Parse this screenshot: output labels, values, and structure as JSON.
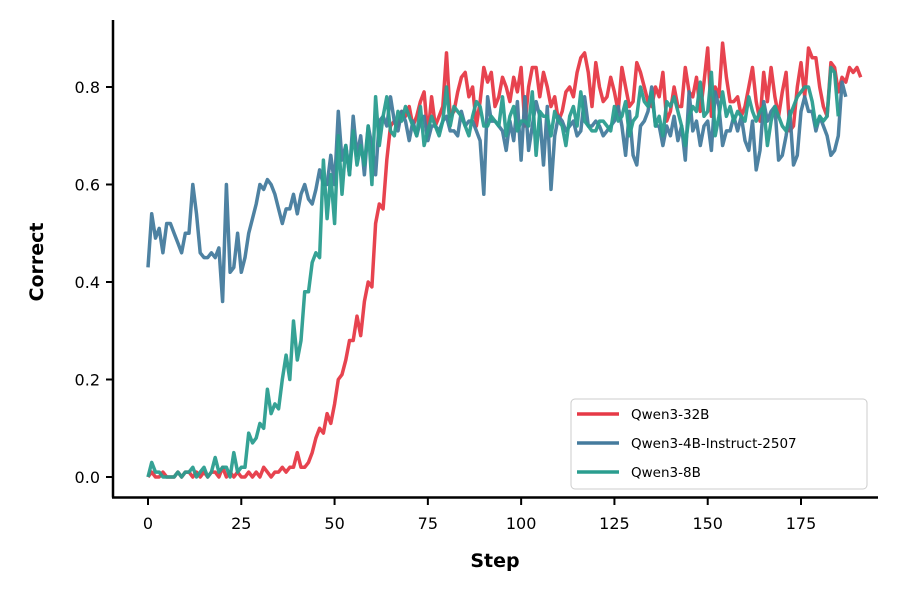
{
  "chart_data": {
    "type": "line",
    "title": "",
    "xlabel": "Step",
    "ylabel": "Correct",
    "xlim": [
      -9,
      197
    ],
    "ylim": [
      -0.045,
      0.935
    ],
    "xticks": [
      0,
      25,
      50,
      75,
      100,
      125,
      150,
      175
    ],
    "yticks": [
      0.0,
      0.2,
      0.4,
      0.6,
      0.8
    ],
    "ytick_labels": [
      "0.0",
      "0.2",
      "0.4",
      "0.6",
      "0.8"
    ],
    "grid": false,
    "legend_position": "lower right",
    "series": [
      {
        "name": "Qwen3-32B",
        "color": "#e63946",
        "values": [
          0.0,
          0.01,
          0.0,
          0.0,
          0.01,
          0.0,
          0.0,
          0.0,
          0.01,
          0.0,
          0.01,
          0.01,
          0.0,
          0.01,
          0.0,
          0.01,
          0.0,
          0.01,
          0.01,
          0.0,
          0.02,
          0.0,
          0.01,
          0.0,
          0.01,
          0.0,
          0.0,
          0.01,
          0.0,
          0.01,
          0.0,
          0.02,
          0.01,
          0.0,
          0.01,
          0.01,
          0.02,
          0.01,
          0.02,
          0.02,
          0.05,
          0.02,
          0.02,
          0.03,
          0.05,
          0.08,
          0.1,
          0.09,
          0.13,
          0.11,
          0.15,
          0.2,
          0.21,
          0.24,
          0.28,
          0.28,
          0.33,
          0.29,
          0.36,
          0.4,
          0.39,
          0.52,
          0.56,
          0.55,
          0.65,
          0.72,
          0.73,
          0.72,
          0.75,
          0.74,
          0.76,
          0.72,
          0.74,
          0.77,
          0.79,
          0.7,
          0.78,
          0.72,
          0.74,
          0.76,
          0.87,
          0.74,
          0.75,
          0.79,
          0.82,
          0.83,
          0.78,
          0.8,
          0.72,
          0.77,
          0.84,
          0.81,
          0.83,
          0.76,
          0.78,
          0.82,
          0.8,
          0.77,
          0.82,
          0.79,
          0.84,
          0.72,
          0.8,
          0.84,
          0.84,
          0.78,
          0.83,
          0.8,
          0.76,
          0.78,
          0.73,
          0.75,
          0.79,
          0.8,
          0.78,
          0.83,
          0.86,
          0.87,
          0.83,
          0.76,
          0.85,
          0.8,
          0.77,
          0.78,
          0.82,
          0.79,
          0.75,
          0.84,
          0.8,
          0.76,
          0.77,
          0.85,
          0.83,
          0.8,
          0.77,
          0.76,
          0.8,
          0.78,
          0.83,
          0.73,
          0.75,
          0.8,
          0.76,
          0.76,
          0.84,
          0.79,
          0.78,
          0.82,
          0.75,
          0.81,
          0.88,
          0.74,
          0.8,
          0.78,
          0.89,
          0.82,
          0.77,
          0.77,
          0.78,
          0.74,
          0.76,
          0.8,
          0.84,
          0.77,
          0.73,
          0.83,
          0.77,
          0.84,
          0.78,
          0.74,
          0.79,
          0.83,
          0.71,
          0.72,
          0.8,
          0.85,
          0.78,
          0.88,
          0.86,
          0.86,
          0.8,
          0.76,
          0.74,
          0.85,
          0.84,
          0.79,
          0.82,
          0.81,
          0.84,
          0.83,
          0.84,
          0.82
        ]
      },
      {
        "name": "Qwen3-4B-Instruct-2507",
        "color": "#457b9d",
        "values": [
          0.43,
          0.54,
          0.49,
          0.51,
          0.46,
          0.52,
          0.52,
          0.5,
          0.48,
          0.46,
          0.5,
          0.5,
          0.6,
          0.54,
          0.46,
          0.45,
          0.45,
          0.46,
          0.45,
          0.47,
          0.36,
          0.6,
          0.42,
          0.43,
          0.5,
          0.42,
          0.45,
          0.5,
          0.53,
          0.56,
          0.6,
          0.59,
          0.61,
          0.6,
          0.58,
          0.55,
          0.52,
          0.55,
          0.55,
          0.58,
          0.54,
          0.58,
          0.6,
          0.57,
          0.56,
          0.59,
          0.63,
          0.6,
          0.6,
          0.66,
          0.6,
          0.75,
          0.65,
          0.68,
          0.62,
          0.74,
          0.66,
          0.7,
          0.62,
          0.72,
          0.68,
          0.62,
          0.73,
          0.74,
          0.72,
          0.78,
          0.73,
          0.71,
          0.75,
          0.73,
          0.69,
          0.73,
          0.7,
          0.73,
          0.74,
          0.69,
          0.72,
          0.72,
          0.71,
          0.73,
          0.74,
          0.71,
          0.71,
          0.7,
          0.75,
          0.72,
          0.73,
          0.73,
          0.71,
          0.69,
          0.58,
          0.78,
          0.73,
          0.73,
          0.72,
          0.71,
          0.67,
          0.73,
          0.69,
          0.77,
          0.65,
          0.78,
          0.67,
          0.72,
          0.77,
          0.74,
          0.64,
          0.76,
          0.59,
          0.7,
          0.74,
          0.73,
          0.71,
          0.72,
          0.73,
          0.7,
          0.71,
          0.78,
          0.72,
          0.72,
          0.73,
          0.72,
          0.7,
          0.71,
          0.72,
          0.73,
          0.76,
          0.72,
          0.66,
          0.75,
          0.66,
          0.64,
          0.72,
          0.73,
          0.75,
          0.8,
          0.72,
          0.72,
          0.68,
          0.72,
          0.7,
          0.74,
          0.69,
          0.72,
          0.65,
          0.79,
          0.71,
          0.73,
          0.68,
          0.72,
          0.73,
          0.67,
          0.79,
          0.76,
          0.68,
          0.71,
          0.71,
          0.74,
          0.71,
          0.74,
          0.69,
          0.67,
          0.73,
          0.63,
          0.67,
          0.77,
          0.73,
          0.75,
          0.76,
          0.65,
          0.66,
          0.7,
          0.75,
          0.64,
          0.66,
          0.75,
          0.78,
          0.75,
          0.75,
          0.71,
          0.74,
          0.72,
          0.7,
          0.66,
          0.67,
          0.7,
          0.81,
          0.78
        ]
      },
      {
        "name": "Qwen3-8B",
        "color": "#2a9d8f",
        "values": [
          0.0,
          0.03,
          0.01,
          0.01,
          0.0,
          0.0,
          0.0,
          0.0,
          0.01,
          0.0,
          0.01,
          0.01,
          0.02,
          0.0,
          0.01,
          0.02,
          0.0,
          0.01,
          0.04,
          0.01,
          0.02,
          0.02,
          0.0,
          0.05,
          0.01,
          0.02,
          0.02,
          0.09,
          0.07,
          0.08,
          0.11,
          0.1,
          0.18,
          0.13,
          0.15,
          0.14,
          0.2,
          0.25,
          0.2,
          0.32,
          0.24,
          0.28,
          0.38,
          0.38,
          0.44,
          0.46,
          0.45,
          0.65,
          0.53,
          0.62,
          0.52,
          0.7,
          0.58,
          0.68,
          0.62,
          0.71,
          0.64,
          0.68,
          0.64,
          0.72,
          0.6,
          0.78,
          0.68,
          0.74,
          0.78,
          0.71,
          0.7,
          0.75,
          0.73,
          0.76,
          0.74,
          0.72,
          0.7,
          0.76,
          0.68,
          0.71,
          0.74,
          0.72,
          0.7,
          0.73,
          0.8,
          0.72,
          0.76,
          0.75,
          0.74,
          0.72,
          0.7,
          0.74,
          0.77,
          0.76,
          0.72,
          0.72,
          0.74,
          0.73,
          0.72,
          0.78,
          0.7,
          0.74,
          0.76,
          0.71,
          0.73,
          0.73,
          0.72,
          0.79,
          0.66,
          0.75,
          0.74,
          0.74,
          0.7,
          0.75,
          0.73,
          0.72,
          0.68,
          0.74,
          0.76,
          0.72,
          0.79,
          0.73,
          0.72,
          0.71,
          0.71,
          0.73,
          0.73,
          0.72,
          0.71,
          0.76,
          0.73,
          0.74,
          0.77,
          0.7,
          0.73,
          0.74,
          0.8,
          0.77,
          0.76,
          0.79,
          0.72,
          0.74,
          0.7,
          0.77,
          0.76,
          0.78,
          0.75,
          0.72,
          0.68,
          0.74,
          0.76,
          0.75,
          0.81,
          0.74,
          0.75,
          0.83,
          0.7,
          0.74,
          0.79,
          0.74,
          0.76,
          0.73,
          0.75,
          0.74,
          0.73,
          0.78,
          0.75,
          0.73,
          0.75,
          0.76,
          0.68,
          0.73,
          0.76,
          0.74,
          0.72,
          0.71,
          0.74,
          0.76,
          0.78,
          0.79,
          0.8,
          0.8,
          0.77,
          0.72,
          0.74,
          0.73,
          0.74,
          0.84,
          0.83,
          0.74
        ]
      }
    ]
  }
}
